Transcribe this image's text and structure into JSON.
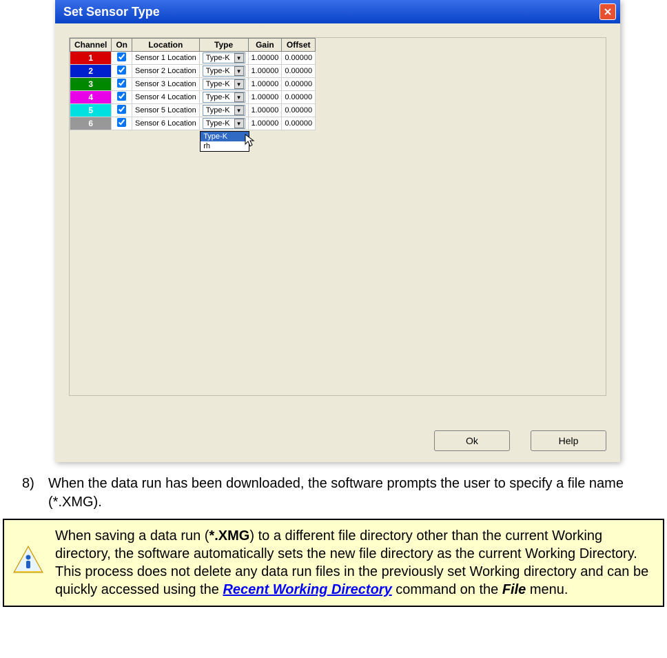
{
  "dialog": {
    "title": "Set Sensor Type",
    "ok_label": "Ok",
    "help_label": "Help"
  },
  "table": {
    "headers": {
      "channel": "Channel",
      "on": "On",
      "location": "Location",
      "type": "Type",
      "gain": "Gain",
      "offset": "Offset"
    },
    "rows": [
      {
        "ch": "1",
        "color": "#d80000",
        "on": true,
        "location": "Sensor 1 Location",
        "type": "Type-K",
        "gain": "1.00000",
        "offset": "0.00000"
      },
      {
        "ch": "2",
        "color": "#0020d0",
        "on": true,
        "location": "Sensor 2 Location",
        "type": "Type-K",
        "gain": "1.00000",
        "offset": "0.00000"
      },
      {
        "ch": "3",
        "color": "#008800",
        "on": true,
        "location": "Sensor 3 Location",
        "type": "Type-K",
        "gain": "1.00000",
        "offset": "0.00000"
      },
      {
        "ch": "4",
        "color": "#e800e8",
        "on": true,
        "location": "Sensor 4 Location",
        "type": "Type-K",
        "gain": "1.00000",
        "offset": "0.00000"
      },
      {
        "ch": "5",
        "color": "#00e0e0",
        "on": true,
        "location": "Sensor 5 Location",
        "type": "Type-K",
        "gain": "1.00000",
        "offset": "0.00000"
      },
      {
        "ch": "6",
        "color": "#989898",
        "on": true,
        "location": "Sensor 6 Location",
        "type": "Type-K",
        "gain": "1.00000",
        "offset": "0.00000"
      }
    ],
    "dropdown_options": [
      {
        "label": "Type-K",
        "selected": true
      },
      {
        "label": "rh",
        "selected": false
      }
    ]
  },
  "step": {
    "number": "8)",
    "text": "When the data run has been downloaded, the software prompts the user to specify a file name (*.XMG)."
  },
  "note": {
    "pre": "When saving a data run (",
    "ext": "*.XMG",
    "mid1": ") to a different file directory other than the current Working directory, the software automatically sets the new file directory as the current Working Directory. This process does not delete any data run files in the previously set Working directory and can be quickly accessed using the ",
    "link": "Recent Working Directory",
    "mid2": " command on the ",
    "menu": "File",
    "post": " menu."
  }
}
